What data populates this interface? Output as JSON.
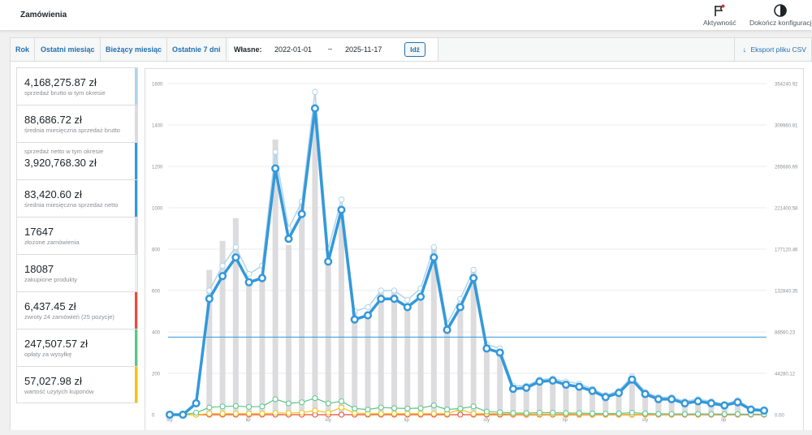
{
  "header": {
    "title": "Zamówienia",
    "activity_label": "Aktywność",
    "finish_setup_label": "Dokończ konfiguracj"
  },
  "ranges": {
    "year": "Rok",
    "last_month": "Ostatni miesiąc",
    "this_month": "Bieżący miesiąc",
    "last_7_days": "Ostatnie 7 dni",
    "custom_label": "Własne:",
    "date_from": "2022-01-01",
    "date_to": "2025-11-17",
    "separator": "–",
    "go_label": "Idź",
    "export_label": "Eksport pliku CSV"
  },
  "legend": [
    {
      "value": "4,168,275.87 zł",
      "label": "sprzedaż brutto w tym okresie",
      "color": "#b1d4ea",
      "label_first": false
    },
    {
      "value": "88,686.72 zł",
      "label": "średnia miesięczna sprzedaż brutto",
      "color": "#dcdcde",
      "label_first": false
    },
    {
      "value": "3,920,768.30 zł",
      "label": "sprzedaż netto w tym okresie",
      "color": "#3498db",
      "label_first": true
    },
    {
      "value": "83,420.60 zł",
      "label": "średnia miesięczna sprzedaż netto",
      "color": "#3498db",
      "label_first": false
    },
    {
      "value": "17647",
      "label": "złożone zamówienia",
      "color": "#dcdcde",
      "label_first": false
    },
    {
      "value": "18087",
      "label": "zakupione produkty",
      "color": "#ecf0f1",
      "label_first": false
    },
    {
      "value": "6,437.45 zł",
      "label": "zwroty 24 zamówień (25 pozycje)",
      "color": "#e74c3c",
      "label_first": false
    },
    {
      "value": "247,507.57 zł",
      "label": "opłaty za wysyłkę",
      "color": "#5cc488",
      "label_first": false
    },
    {
      "value": "57,027.98 zł",
      "label": "wartość użytych kuponów",
      "color": "#f1c40f",
      "label_first": false
    }
  ],
  "chart_data": {
    "type": "line",
    "y_left_ticks": [
      "1600",
      "1400",
      "1200",
      "1000",
      "800",
      "600",
      "400",
      "200",
      "0"
    ],
    "y_right_ticks": [
      "354240.92",
      "309960.81",
      "265680.69",
      "221400.58",
      "177120.46",
      "132840.35",
      "88560.23",
      "44280.12",
      "0.00"
    ],
    "ylim_left": [
      0,
      1600
    ],
    "x_tick_labels": [
      "sty",
      "lip",
      "sty",
      "lip",
      "sty",
      "lip",
      "sty",
      "lip"
    ],
    "average_net_line": 375,
    "series": [
      {
        "name": "złożone zamówienia",
        "values": [
          0,
          0,
          0,
          700,
          840,
          950,
          660,
          680,
          1330,
          820,
          1030,
          1420,
          750,
          960,
          500,
          480,
          600,
          600,
          510,
          550,
          810,
          430,
          510,
          700,
          330,
          300,
          145,
          150,
          180,
          180,
          160,
          150,
          130,
          100,
          120,
          175,
          100,
          80,
          80,
          60,
          70,
          60,
          50,
          60,
          40,
          30
        ]
      },
      {
        "name": "sprzedaż brutto w tym okresie",
        "values": [
          0,
          0,
          55,
          600,
          720,
          810,
          680,
          720,
          1270,
          900,
          1030,
          1560,
          800,
          1040,
          500,
          520,
          600,
          600,
          555,
          610,
          810,
          440,
          560,
          700,
          340,
          320,
          140,
          140,
          170,
          175,
          160,
          150,
          125,
          95,
          115,
          185,
          110,
          85,
          85,
          65,
          75,
          65,
          50,
          70,
          30,
          25
        ]
      },
      {
        "name": "sprzedaż netto w tym okresie",
        "values": [
          0,
          0,
          55,
          560,
          670,
          760,
          640,
          660,
          1190,
          850,
          970,
          1480,
          740,
          990,
          460,
          480,
          560,
          560,
          520,
          570,
          760,
          410,
          520,
          660,
          320,
          300,
          125,
          130,
          160,
          165,
          145,
          135,
          115,
          85,
          105,
          170,
          100,
          75,
          75,
          55,
          65,
          55,
          45,
          60,
          25,
          20
        ]
      },
      {
        "name": "opłaty za wysyłkę",
        "values": [
          0,
          0,
          10,
          35,
          40,
          42,
          38,
          40,
          75,
          55,
          60,
          80,
          55,
          65,
          30,
          25,
          35,
          32,
          30,
          32,
          45,
          25,
          30,
          40,
          15,
          12,
          8,
          8,
          10,
          10,
          8,
          8,
          6,
          5,
          6,
          10,
          6,
          4,
          4,
          3,
          4,
          3,
          3,
          3,
          2,
          2
        ]
      },
      {
        "name": "wartość użytych kuponów",
        "values": [
          0,
          0,
          0,
          5,
          5,
          5,
          5,
          5,
          8,
          8,
          10,
          20,
          10,
          35,
          8,
          5,
          5,
          5,
          5,
          5,
          5,
          5,
          25,
          5,
          5,
          5,
          3,
          3,
          3,
          3,
          3,
          3,
          2,
          2,
          2,
          2,
          2,
          2,
          2,
          2,
          2,
          2,
          2,
          2,
          2,
          2
        ]
      },
      {
        "name": "zwroty",
        "values": [
          0,
          0,
          0,
          0,
          0,
          0,
          0,
          0,
          0,
          0,
          0,
          0,
          0,
          0,
          0,
          0,
          0,
          0,
          0,
          0,
          0,
          0,
          0,
          0,
          0,
          0,
          0,
          0,
          0,
          0,
          0,
          0,
          0,
          0,
          0,
          0,
          0,
          0,
          0,
          0,
          0,
          0,
          0,
          0,
          0,
          0
        ]
      }
    ],
    "colors": {
      "bars": "#dcdcde",
      "gross": "#b1d4ea",
      "net": "#3498db",
      "shipping": "#5cc488",
      "coupons": "#f1c40f",
      "refunds": "#e74c3c"
    },
    "grid": true
  }
}
